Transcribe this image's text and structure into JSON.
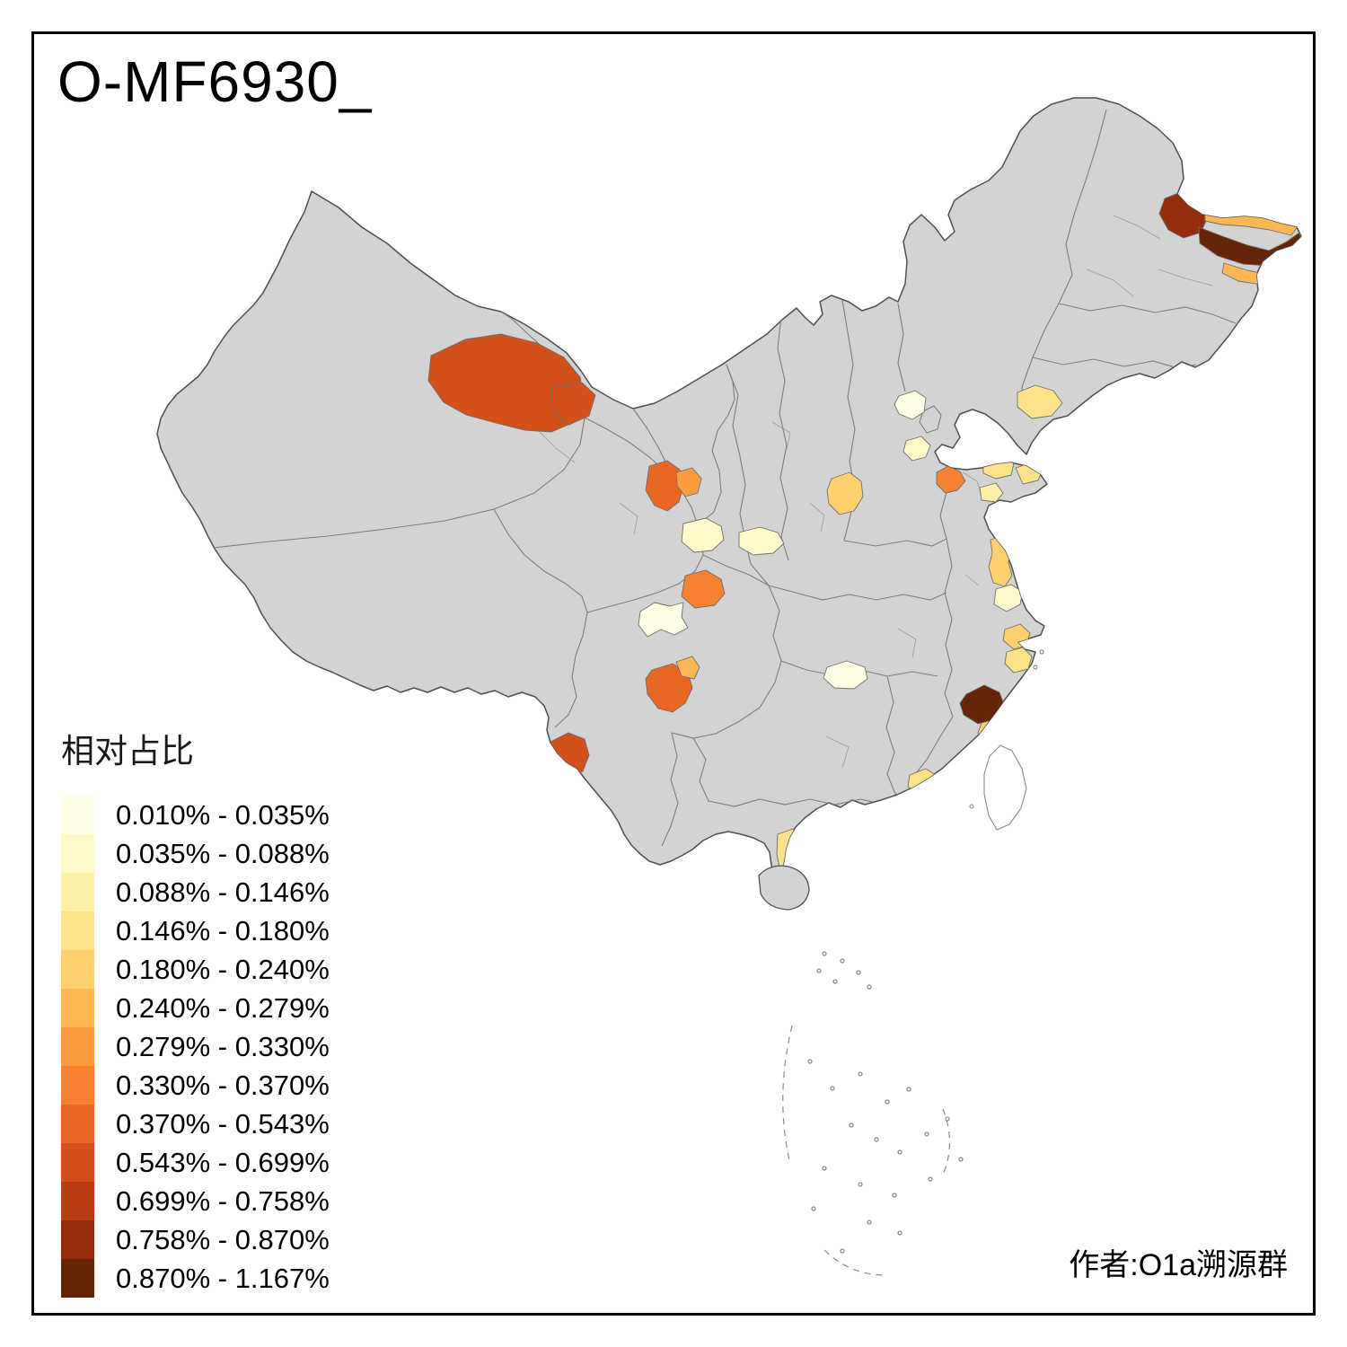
{
  "title": "O-MF6930_",
  "author": "作者:O1a溯源群",
  "legend": {
    "title": "相对占比",
    "items": [
      {
        "label": "0.010% - 0.035%",
        "color": "#FFFFE5"
      },
      {
        "label": "0.035% - 0.088%",
        "color": "#FFF8C8"
      },
      {
        "label": "0.088% - 0.146%",
        "color": "#FEF0A8"
      },
      {
        "label": "0.146% - 0.180%",
        "color": "#FEE28A"
      },
      {
        "label": "0.180% - 0.240%",
        "color": "#FED06E"
      },
      {
        "label": "0.240% - 0.279%",
        "color": "#FEB853"
      },
      {
        "label": "0.279% - 0.330%",
        "color": "#FC9C41"
      },
      {
        "label": "0.330% - 0.370%",
        "color": "#F68130"
      },
      {
        "label": "0.370% - 0.543%",
        "color": "#E96722"
      },
      {
        "label": "0.543% - 0.699%",
        "color": "#D4501A"
      },
      {
        "label": "0.699% - 0.758%",
        "color": "#B93D12"
      },
      {
        "label": "0.758% - 0.870%",
        "color": "#952C0C"
      },
      {
        "label": "0.870% - 1.167%",
        "color": "#662506"
      }
    ]
  },
  "map": {
    "base_fill": "#D3D3D3",
    "outline_color": "#4F4F4F",
    "boundary_color": "#7D7D7D",
    "regions": {
      "xinjiang-north-large": {
        "bucket": 9,
        "range": "0.543% - 0.699%"
      },
      "xinjiang-north-east": {
        "bucket": 9,
        "range": "0.543% - 0.699%"
      },
      "heilongjiang-nw": {
        "bucket": 11,
        "range": "0.758% - 0.870%"
      },
      "heilongjiang-ne-band": {
        "bucket": 5,
        "range": "0.240% - 0.279%"
      },
      "heilongjiang-e-dark": {
        "bucket": 12,
        "range": "0.870% - 1.167%"
      },
      "heilongjiang-se-band": {
        "bucket": 5,
        "range": "0.240% - 0.279%"
      },
      "gansu-west": {
        "bucket": 8,
        "range": "0.370% - 0.543%"
      },
      "gansu-west-2": {
        "bucket": 6,
        "range": "0.279% - 0.330%"
      },
      "gansu-central": {
        "bucket": 1,
        "range": "0.035% - 0.088%"
      },
      "shaanxi-north": {
        "bucket": 1,
        "range": "0.035% - 0.088%"
      },
      "gansu-south": {
        "bucket": 7,
        "range": "0.330% - 0.370%"
      },
      "sichuan-west": {
        "bucket": 0,
        "range": "0.010% - 0.035%"
      },
      "sichuan-central": {
        "bucket": 8,
        "range": "0.370% - 0.543%"
      },
      "sichuan-central-2": {
        "bucket": 5,
        "range": "0.240% - 0.279%"
      },
      "yunnan-west": {
        "bucket": 9,
        "range": "0.543% - 0.699%"
      },
      "beijing": {
        "bucket": 0,
        "range": "0.010% - 0.035%"
      },
      "hebei-central": {
        "bucket": 1,
        "range": "0.035% - 0.088%"
      },
      "shanxi-central": {
        "bucket": 4,
        "range": "0.180% - 0.240%"
      },
      "shandong-west": {
        "bucket": 7,
        "range": "0.330% - 0.370%"
      },
      "shandong-central": {
        "bucket": 2,
        "range": "0.088% - 0.146%"
      },
      "shandong-peninsula-1": {
        "bucket": 3,
        "range": "0.146% - 0.180%"
      },
      "shandong-peninsula-2": {
        "bucket": 3,
        "range": "0.146% - 0.180%"
      },
      "liaoning-south": {
        "bucket": 3,
        "range": "0.146% - 0.180%"
      },
      "jiangsu-coast": {
        "bucket": 4,
        "range": "0.180% - 0.240%"
      },
      "jiangsu-south": {
        "bucket": 1,
        "range": "0.035% - 0.088%"
      },
      "zhejiang-north": {
        "bucket": 4,
        "range": "0.180% - 0.240%"
      },
      "zhejiang-central": {
        "bucket": 3,
        "range": "0.146% - 0.180%"
      },
      "hubei-central": {
        "bucket": 0,
        "range": "0.010% - 0.035%"
      },
      "fujian-coast-dark": {
        "bucket": 12,
        "range": "0.870% - 1.167%"
      },
      "fujian-south": {
        "bucket": 4,
        "range": "0.180% - 0.240%"
      },
      "guangdong-east": {
        "bucket": 3,
        "range": "0.146% - 0.180%"
      },
      "leizhou-peninsula": {
        "bucket": 3,
        "range": "0.146% - 0.180%"
      },
      "guangxi-southeast": {
        "bucket": 1,
        "range": "0.035% - 0.088%"
      }
    }
  }
}
